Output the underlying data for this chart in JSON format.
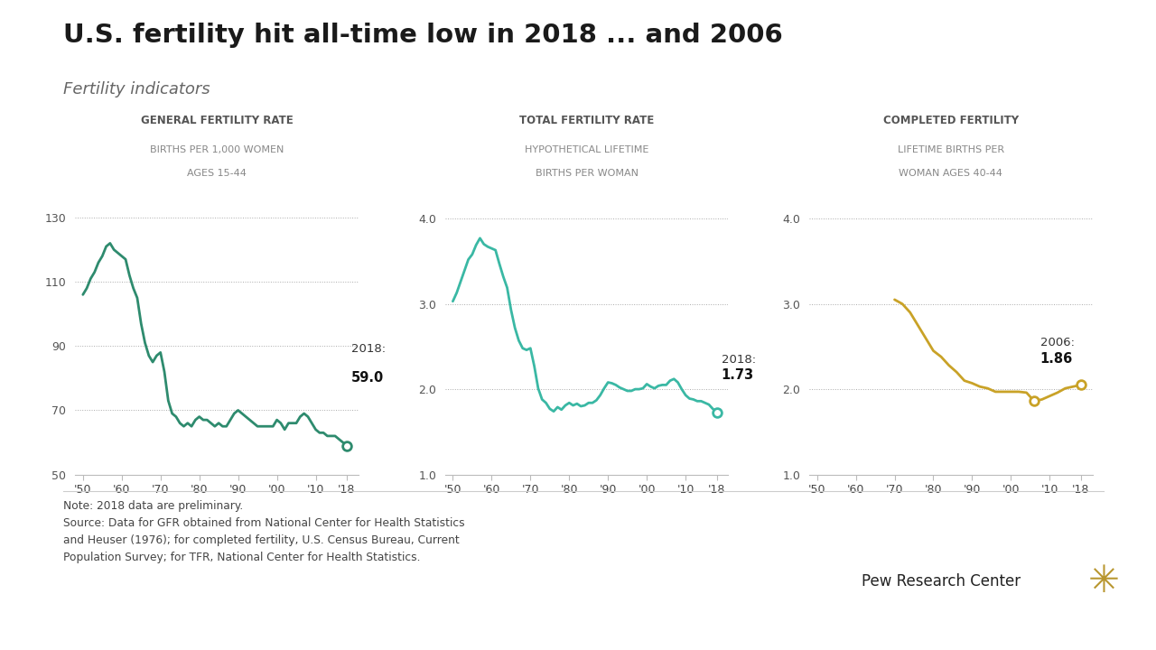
{
  "title": "U.S. fertility hit all-time low in 2018 ... and 2006",
  "subtitle": "Fertility indicators",
  "background_color": "#ffffff",
  "line_color_gfr": "#2e8b6e",
  "line_color_tfr": "#3ab8a4",
  "line_color_cf": "#c9a227",
  "note_text": "Note: 2018 data are preliminary.\nSource: Data for GFR obtained from National Center for Health Statistics\nand Heuser (1976); for completed fertility, U.S. Census Bureau, Current\nPopulation Survey; for TFR, National Center for Health Statistics.",
  "pew_text": "Pew Research Center",
  "gfr_title1": "GENERAL FERTILITY RATE",
  "gfr_title2": "BIRTHS PER 1,000 WOMEN",
  "gfr_title3": "AGES 15-44",
  "gfr_years": [
    1950,
    1951,
    1952,
    1953,
    1954,
    1955,
    1956,
    1957,
    1958,
    1959,
    1960,
    1961,
    1962,
    1963,
    1964,
    1965,
    1966,
    1967,
    1968,
    1969,
    1970,
    1971,
    1972,
    1973,
    1974,
    1975,
    1976,
    1977,
    1978,
    1979,
    1980,
    1981,
    1982,
    1983,
    1984,
    1985,
    1986,
    1987,
    1988,
    1989,
    1990,
    1991,
    1992,
    1993,
    1994,
    1995,
    1996,
    1997,
    1998,
    1999,
    2000,
    2001,
    2002,
    2003,
    2004,
    2005,
    2006,
    2007,
    2008,
    2009,
    2010,
    2011,
    2012,
    2013,
    2014,
    2015,
    2016,
    2017,
    2018
  ],
  "gfr_values": [
    106,
    108,
    111,
    113,
    116,
    118,
    121,
    122,
    120,
    119,
    118,
    117,
    112,
    108,
    105,
    97,
    91,
    87,
    85,
    87,
    88,
    82,
    73,
    69,
    68,
    66,
    65,
    66,
    65,
    67,
    68,
    67,
    67,
    66,
    65,
    66,
    65,
    65,
    67,
    69,
    70,
    69,
    68,
    67,
    66,
    65,
    65,
    65,
    65,
    65,
    67,
    66,
    64,
    66,
    66,
    66,
    68,
    69,
    68,
    66,
    64,
    63,
    63,
    62,
    62,
    62,
    61,
    60,
    59
  ],
  "gfr_ylim": [
    50,
    135
  ],
  "gfr_yticks": [
    50,
    70,
    90,
    110,
    130
  ],
  "tfr_title1": "TOTAL FERTILITY RATE",
  "tfr_title2": "HYPOTHETICAL LIFETIME",
  "tfr_title3": "BIRTHS PER WOMAN",
  "tfr_years": [
    1950,
    1951,
    1952,
    1953,
    1954,
    1955,
    1956,
    1957,
    1958,
    1959,
    1960,
    1961,
    1962,
    1963,
    1964,
    1965,
    1966,
    1967,
    1968,
    1969,
    1970,
    1971,
    1972,
    1973,
    1974,
    1975,
    1976,
    1977,
    1978,
    1979,
    1980,
    1981,
    1982,
    1983,
    1984,
    1985,
    1986,
    1987,
    1988,
    1989,
    1990,
    1991,
    1992,
    1993,
    1994,
    1995,
    1996,
    1997,
    1998,
    1999,
    2000,
    2001,
    2002,
    2003,
    2004,
    2005,
    2006,
    2007,
    2008,
    2009,
    2010,
    2011,
    2012,
    2013,
    2014,
    2015,
    2016,
    2017,
    2018
  ],
  "tfr_values": [
    3.03,
    3.13,
    3.26,
    3.39,
    3.52,
    3.58,
    3.69,
    3.77,
    3.7,
    3.67,
    3.65,
    3.63,
    3.47,
    3.32,
    3.19,
    2.93,
    2.72,
    2.57,
    2.48,
    2.46,
    2.48,
    2.27,
    2.01,
    1.88,
    1.84,
    1.77,
    1.74,
    1.79,
    1.76,
    1.81,
    1.84,
    1.81,
    1.83,
    1.8,
    1.81,
    1.84,
    1.84,
    1.87,
    1.93,
    2.01,
    2.08,
    2.07,
    2.05,
    2.02,
    2.0,
    1.98,
    1.98,
    2.0,
    2.0,
    2.01,
    2.06,
    2.03,
    2.01,
    2.04,
    2.05,
    2.05,
    2.1,
    2.12,
    2.08,
    2.0,
    1.93,
    1.89,
    1.88,
    1.86,
    1.86,
    1.84,
    1.82,
    1.77,
    1.73
  ],
  "tfr_ylim": [
    1.0,
    4.2
  ],
  "tfr_yticks": [
    1.0,
    2.0,
    3.0,
    4.0
  ],
  "cf_title1": "COMPLETED FERTILITY",
  "cf_title2": "LIFETIME BIRTHS PER",
  "cf_title3": "WOMAN AGES 40-44",
  "cf_years": [
    1970,
    1972,
    1974,
    1976,
    1978,
    1980,
    1982,
    1984,
    1986,
    1988,
    1990,
    1992,
    1994,
    1996,
    1998,
    2000,
    2002,
    2004,
    2006,
    2008,
    2010,
    2012,
    2014,
    2016,
    2018
  ],
  "cf_values": [
    3.05,
    3.0,
    2.9,
    2.75,
    2.6,
    2.45,
    2.38,
    2.28,
    2.2,
    2.1,
    2.07,
    2.03,
    2.01,
    1.97,
    1.97,
    1.97,
    1.97,
    1.96,
    1.86,
    1.88,
    1.92,
    1.96,
    2.01,
    2.03,
    2.05
  ],
  "cf_ylim": [
    1.0,
    4.2
  ],
  "cf_yticks": [
    1.0,
    2.0,
    3.0,
    4.0
  ],
  "xtick_labels": [
    "'50",
    "'60",
    "'70",
    "'80",
    "'90",
    "'00",
    "'10",
    "'18"
  ],
  "xtick_positions": [
    1950,
    1960,
    1970,
    1980,
    1990,
    2000,
    2010,
    2018
  ]
}
